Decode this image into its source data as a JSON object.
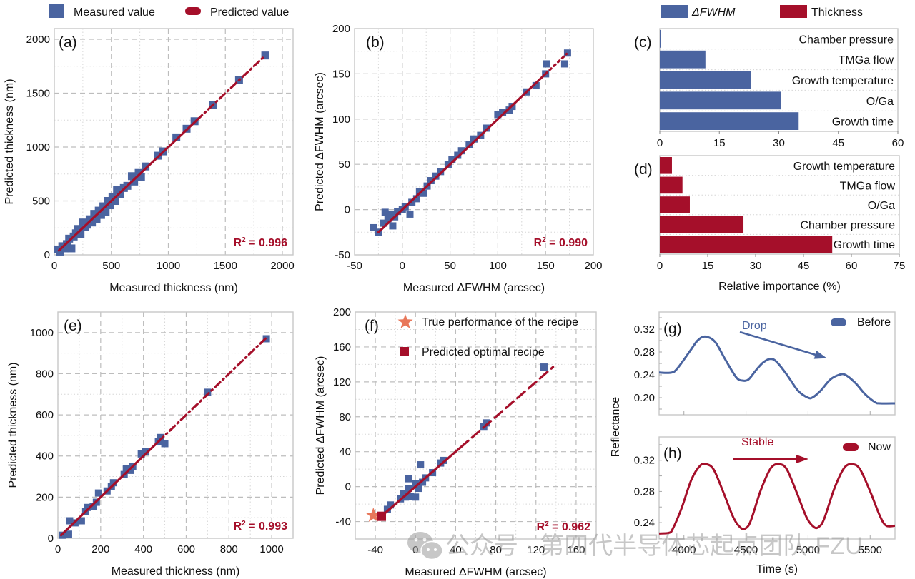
{
  "colors": {
    "measured": "#4a64a0",
    "predicted": "#a50f2a",
    "star": "#e8775a",
    "fwhm_bar": "#4a64a0",
    "thickness_bar": "#a50f2a"
  },
  "legends": {
    "top_left": [
      {
        "label": "Measured value",
        "marker": "square"
      },
      {
        "label": "Predicted value",
        "marker": "pill"
      }
    ],
    "top_right": [
      {
        "label": "ΔFWHM",
        "marker": "bar"
      },
      {
        "label": "Thickness",
        "marker": "bar"
      }
    ]
  },
  "watermark": "公众号 · 第四代半导体芯起点团队-FZU",
  "chart_data": [
    {
      "id": "a",
      "panel_label": "(a)",
      "type": "scatter",
      "xlabel": "Measured thickness (nm)",
      "ylabel": "Predicted thickness (nm)",
      "xlim": [
        0,
        2000
      ],
      "ylim": [
        0,
        2000
      ],
      "xticks": [
        0,
        500,
        1000,
        1500,
        2000
      ],
      "yticks": [
        0,
        500,
        1000,
        1500,
        2000
      ],
      "annotation": "R² = 0.996",
      "fit_line": {
        "from": [
          40,
          40
        ],
        "to": [
          1850,
          1850
        ],
        "style": "solid-then-dashdot",
        "solid_until": 1250
      },
      "points": [
        [
          30,
          50
        ],
        [
          50,
          30
        ],
        [
          70,
          80
        ],
        [
          90,
          60
        ],
        [
          110,
          100
        ],
        [
          130,
          150
        ],
        [
          150,
          60
        ],
        [
          170,
          170
        ],
        [
          190,
          200
        ],
        [
          210,
          240
        ],
        [
          230,
          190
        ],
        [
          250,
          300
        ],
        [
          270,
          260
        ],
        [
          290,
          280
        ],
        [
          310,
          330
        ],
        [
          330,
          300
        ],
        [
          350,
          380
        ],
        [
          370,
          330
        ],
        [
          390,
          410
        ],
        [
          410,
          370
        ],
        [
          430,
          450
        ],
        [
          450,
          400
        ],
        [
          470,
          500
        ],
        [
          490,
          460
        ],
        [
          510,
          540
        ],
        [
          530,
          500
        ],
        [
          550,
          600
        ],
        [
          580,
          560
        ],
        [
          610,
          620
        ],
        [
          640,
          640
        ],
        [
          680,
          730
        ],
        [
          700,
          680
        ],
        [
          740,
          760
        ],
        [
          760,
          720
        ],
        [
          800,
          820
        ],
        [
          910,
          920
        ],
        [
          950,
          960
        ],
        [
          1070,
          1090
        ],
        [
          1160,
          1170
        ],
        [
          1230,
          1240
        ],
        [
          1390,
          1390
        ],
        [
          1620,
          1620
        ],
        [
          1850,
          1850
        ]
      ]
    },
    {
      "id": "b",
      "panel_label": "(b)",
      "type": "scatter",
      "xlabel": "Measured ΔFWHM (arcsec)",
      "ylabel": "Predicted ΔFWHM (arcsec)",
      "xlim": [
        -50,
        200
      ],
      "ylim": [
        -50,
        200
      ],
      "xticks": [
        -50,
        0,
        50,
        100,
        150,
        200
      ],
      "yticks": [
        -50,
        0,
        50,
        100,
        150,
        200
      ],
      "annotation": "R² = 0.990",
      "fit_line": {
        "from": [
          -25,
          -25
        ],
        "to": [
          172,
          172
        ],
        "style": "solid-then-dotted",
        "solid_until": 150
      },
      "points": [
        [
          -30,
          -20
        ],
        [
          -25,
          -25
        ],
        [
          -20,
          -15
        ],
        [
          -18,
          -3
        ],
        [
          -15,
          -10
        ],
        [
          -12,
          -5
        ],
        [
          -10,
          -18
        ],
        [
          -8,
          -8
        ],
        [
          -5,
          -2
        ],
        [
          0,
          0
        ],
        [
          3,
          3
        ],
        [
          8,
          -5
        ],
        [
          10,
          8
        ],
        [
          15,
          12
        ],
        [
          18,
          20
        ],
        [
          22,
          18
        ],
        [
          26,
          26
        ],
        [
          30,
          32
        ],
        [
          35,
          37
        ],
        [
          40,
          42
        ],
        [
          48,
          50
        ],
        [
          52,
          55
        ],
        [
          58,
          60
        ],
        [
          62,
          65
        ],
        [
          70,
          72
        ],
        [
          75,
          78
        ],
        [
          82,
          82
        ],
        [
          88,
          90
        ],
        [
          100,
          105
        ],
        [
          105,
          107
        ],
        [
          112,
          110
        ],
        [
          115,
          114
        ],
        [
          130,
          130
        ],
        [
          140,
          137
        ],
        [
          150,
          150
        ],
        [
          151,
          161
        ],
        [
          170,
          161
        ],
        [
          173,
          173
        ]
      ]
    },
    {
      "id": "c",
      "panel_label": "(c)",
      "type": "bar",
      "orientation": "horizontal",
      "series_name": "ΔFWHM",
      "categories": [
        "Chamber pressure",
        "TMGa flow",
        "Growth temperature",
        "O/Ga",
        "Growth time"
      ],
      "values": [
        0.3,
        11.5,
        22.9,
        30.6,
        35.0
      ],
      "xlim": [
        0,
        60
      ],
      "xticks": [
        0,
        15,
        30,
        45,
        60
      ],
      "xlabel": ""
    },
    {
      "id": "d",
      "panel_label": "(d)",
      "type": "bar",
      "orientation": "horizontal",
      "series_name": "Thickness",
      "categories": [
        "Growth temperature",
        "TMGa flow",
        "O/Ga",
        "Chamber pressure",
        "Growth time"
      ],
      "values": [
        3.8,
        7.1,
        9.4,
        26.2,
        54.0
      ],
      "xlim": [
        0,
        75
      ],
      "xticks": [
        0,
        15,
        30,
        45,
        60,
        75
      ],
      "xlabel": "Relative importance (%)"
    },
    {
      "id": "e",
      "panel_label": "(e)",
      "type": "scatter",
      "xlabel": "Measured thickness (nm)",
      "ylabel": "Predicted thickness (nm)",
      "xlim": [
        0,
        1100
      ],
      "ylim": [
        0,
        1100
      ],
      "xticks": [
        0,
        200,
        400,
        600,
        800,
        1000
      ],
      "yticks": [
        0,
        200,
        400,
        600,
        800,
        1000
      ],
      "annotation": "R² = 0.993",
      "fit_line": {
        "from": [
          15,
          15
        ],
        "to": [
          975,
          975
        ],
        "style": "solid-then-dashdot",
        "solid_until": 470
      },
      "points": [
        [
          20,
          15
        ],
        [
          50,
          20
        ],
        [
          55,
          85
        ],
        [
          80,
          75
        ],
        [
          110,
          85
        ],
        [
          130,
          130
        ],
        [
          140,
          150
        ],
        [
          165,
          155
        ],
        [
          180,
          175
        ],
        [
          190,
          220
        ],
        [
          230,
          230
        ],
        [
          250,
          250
        ],
        [
          260,
          270
        ],
        [
          310,
          310
        ],
        [
          320,
          340
        ],
        [
          340,
          330
        ],
        [
          350,
          350
        ],
        [
          390,
          410
        ],
        [
          410,
          420
        ],
        [
          470,
          470
        ],
        [
          480,
          490
        ],
        [
          500,
          460
        ],
        [
          700,
          710
        ],
        [
          975,
          970
        ]
      ]
    },
    {
      "id": "f",
      "panel_label": "(f)",
      "type": "scatter",
      "xlabel": "Measured ΔFWHM (arcsec)",
      "ylabel": "Predicted ΔFWHM (arcsec)",
      "xlim": [
        -60,
        180
      ],
      "ylim": [
        -60,
        200
      ],
      "xticks": [
        -40,
        0,
        40,
        80,
        120,
        160
      ],
      "yticks": [
        -40,
        0,
        40,
        80,
        120,
        160,
        200
      ],
      "annotation": "R² = 0.962",
      "fit_line": {
        "from": [
          -32,
          -32
        ],
        "to": [
          137,
          137
        ],
        "style": "solid-then-dashed",
        "solid_until": 45
      },
      "legend": [
        {
          "label": "True performance of the recipe",
          "marker": "star"
        },
        {
          "label": "Predicted optimal recipe",
          "marker": "square"
        }
      ],
      "points": [
        [
          -28,
          -26
        ],
        [
          -25,
          -21
        ],
        [
          -15,
          -14
        ],
        [
          -12,
          -8
        ],
        [
          -10,
          -12
        ],
        [
          -7,
          9
        ],
        [
          -7,
          -2
        ],
        [
          -5,
          -11
        ],
        [
          0,
          -12
        ],
        [
          0,
          3
        ],
        [
          3,
          -2
        ],
        [
          5,
          25
        ],
        [
          7,
          5
        ],
        [
          10,
          10
        ],
        [
          17,
          16
        ],
        [
          25,
          27
        ],
        [
          28,
          30
        ],
        [
          68,
          69
        ],
        [
          71,
          73
        ],
        [
          128,
          137
        ]
      ],
      "true_performance": [
        -42,
        -33
      ],
      "predicted_optimal": [
        -34,
        -34
      ]
    },
    {
      "id": "g",
      "panel_label": "(g)",
      "type": "line",
      "series_name": "Before",
      "annotation": "Drop",
      "xlim": [
        3800,
        5700
      ],
      "ylim": [
        0.17,
        0.35
      ],
      "yticks": [
        0.2,
        0.24,
        0.28,
        0.32
      ],
      "ytick_labels": [
        "0.20",
        "0.24",
        "0.28",
        "0.32"
      ],
      "xticks": [
        4000,
        4500,
        5000,
        5500
      ],
      "x": [
        3800,
        3900,
        3950,
        4050,
        4110,
        4170,
        4250,
        4330,
        4420,
        4470,
        4520,
        4580,
        4640,
        4700,
        4750,
        4830,
        4920,
        5000,
        5040,
        5100,
        5180,
        5250,
        5300,
        5380,
        5460,
        5540,
        5580,
        5700
      ],
      "y": [
        0.244,
        0.244,
        0.252,
        0.282,
        0.3,
        0.307,
        0.298,
        0.268,
        0.236,
        0.23,
        0.232,
        0.248,
        0.262,
        0.268,
        0.262,
        0.24,
        0.212,
        0.2,
        0.201,
        0.212,
        0.232,
        0.24,
        0.24,
        0.226,
        0.206,
        0.192,
        0.19,
        0.19
      ]
    },
    {
      "id": "h",
      "panel_label": "(h)",
      "type": "line",
      "series_name": "Now",
      "annotation": "Stable",
      "xlim": [
        3800,
        5700
      ],
      "ylim": [
        0.219,
        0.35
      ],
      "yticks": [
        0.24,
        0.28,
        0.32
      ],
      "ytick_labels": [
        "0.24",
        "0.28",
        "0.32"
      ],
      "xticks": [
        4000,
        4500,
        5000,
        5500
      ],
      "xtick_labels": [
        "4000",
        "4500",
        "5000",
        "5500"
      ],
      "xlabel": "Time (s)",
      "ylabel": "Reflectance",
      "x": [
        3800,
        3880,
        3910,
        3980,
        4060,
        4130,
        4180,
        4240,
        4320,
        4400,
        4460,
        4500,
        4540,
        4620,
        4700,
        4770,
        4830,
        4910,
        4990,
        5050,
        5090,
        5130,
        5210,
        5290,
        5360,
        5420,
        5500,
        5580,
        5630,
        5700
      ],
      "y": [
        0.226,
        0.227,
        0.232,
        0.258,
        0.295,
        0.313,
        0.315,
        0.308,
        0.278,
        0.246,
        0.233,
        0.233,
        0.243,
        0.282,
        0.31,
        0.315,
        0.308,
        0.278,
        0.246,
        0.234,
        0.235,
        0.245,
        0.283,
        0.31,
        0.315,
        0.308,
        0.28,
        0.248,
        0.236,
        0.236
      ]
    }
  ]
}
